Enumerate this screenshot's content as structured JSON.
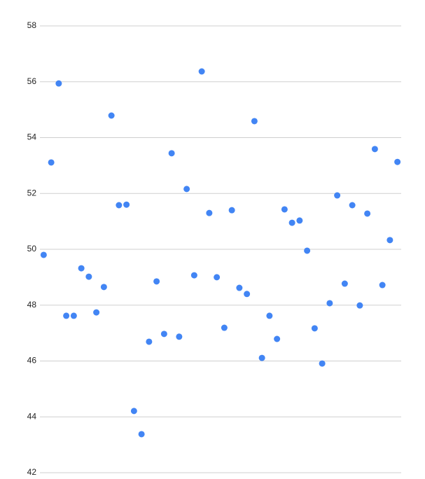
{
  "chart_data": {
    "type": "scatter",
    "categories": [
      null,
      null,
      null,
      null,
      null,
      null,
      null,
      null,
      null,
      null,
      null,
      null,
      null,
      null,
      null,
      null,
      null,
      null,
      null,
      null,
      null,
      null,
      null,
      null,
      null,
      null,
      null,
      null,
      null,
      null,
      null,
      null,
      null,
      null,
      null,
      null,
      null,
      null,
      null,
      null,
      null,
      null,
      null,
      null,
      null,
      null,
      null,
      null
    ],
    "values": [
      49.8,
      53.11,
      55.94,
      47.62,
      47.62,
      49.32,
      49.02,
      47.74,
      48.65,
      54.79,
      51.58,
      51.6,
      44.21,
      43.38,
      46.69,
      48.85,
      46.97,
      53.44,
      46.87,
      52.16,
      49.07,
      56.37,
      51.3,
      49.0,
      47.19,
      51.4,
      48.62,
      48.4,
      54.59,
      46.11,
      47.62,
      46.79,
      51.43,
      50.95,
      51.03,
      49.95,
      47.17,
      45.91,
      48.07,
      51.93,
      48.77,
      51.58,
      47.99,
      51.28,
      53.59,
      48.72,
      50.33,
      53.13
    ],
    "color": "#4285f4",
    "ylim": [
      42,
      58
    ],
    "yticks": [
      42,
      44,
      46,
      48,
      50,
      52,
      54,
      56,
      58
    ],
    "grid": true
  }
}
